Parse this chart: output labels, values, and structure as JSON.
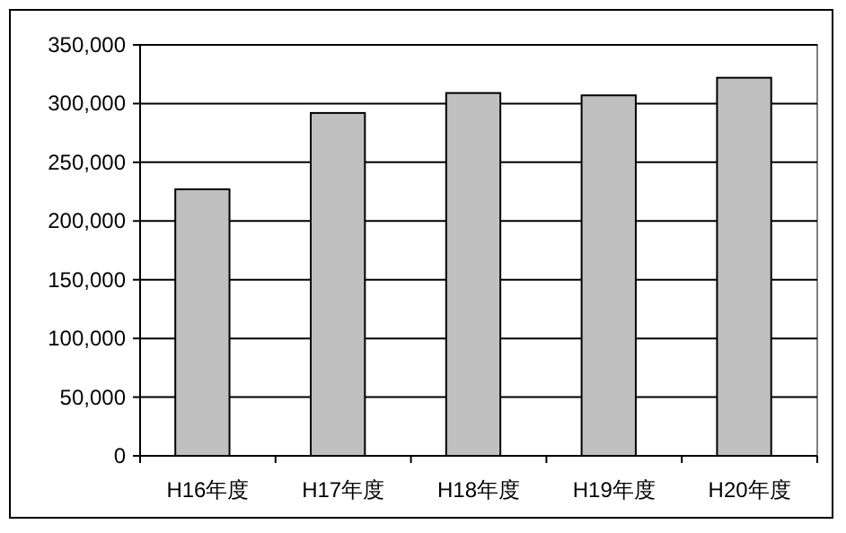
{
  "chart_data": {
    "type": "bar",
    "categories": [
      "H16年度",
      "H17年度",
      "H18年度",
      "H19年度",
      "H20年度"
    ],
    "values": [
      227000,
      292000,
      309000,
      307000,
      322000
    ],
    "color": "#c0c0c0",
    "ylim": [
      0,
      350000
    ],
    "yticks": [
      {
        "value": 0,
        "label": "0"
      },
      {
        "value": 50000,
        "label": "50,000"
      },
      {
        "value": 100000,
        "label": "100,000"
      },
      {
        "value": 150000,
        "label": "150,000"
      },
      {
        "value": 200000,
        "label": "200,000"
      },
      {
        "value": 250000,
        "label": "250,000"
      },
      {
        "value": 300000,
        "label": "300,000"
      },
      {
        "value": 350000,
        "label": "350,000"
      }
    ],
    "grid": "y"
  }
}
